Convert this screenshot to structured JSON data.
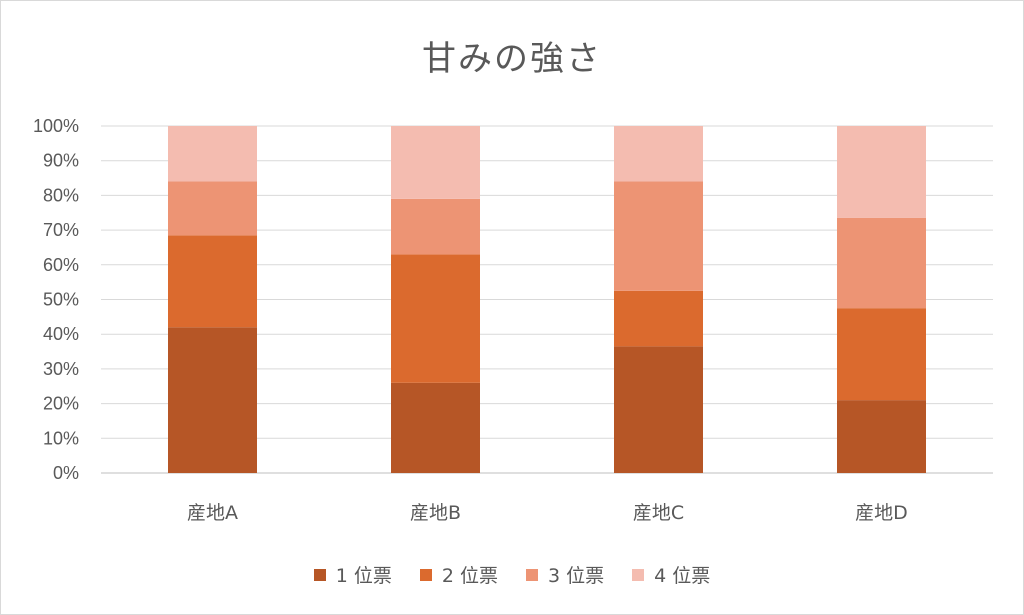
{
  "chart_data": {
    "type": "bar",
    "stacked": true,
    "percent": true,
    "title": "甘みの強さ",
    "categories": [
      "産地A",
      "産地B",
      "産地C",
      "産地D"
    ],
    "ylim": [
      0,
      100
    ],
    "yticks": [
      "0%",
      "10%",
      "20%",
      "30%",
      "40%",
      "50%",
      "60%",
      "70%",
      "80%",
      "90%",
      "100%"
    ],
    "grid": true,
    "legend_position": "bottom",
    "series": [
      {
        "name": "1 位票",
        "color": "#b65626",
        "values": [
          42,
          26,
          36.5,
          21
        ]
      },
      {
        "name": "2 位票",
        "color": "#db6a2e",
        "values": [
          26.5,
          37,
          16,
          26.5
        ]
      },
      {
        "name": "3 位票",
        "color": "#ed9474",
        "values": [
          15.5,
          16,
          31.5,
          26
        ]
      },
      {
        "name": "4 位票",
        "color": "#f4bcb0",
        "values": [
          16,
          21,
          16,
          26.5
        ]
      }
    ]
  }
}
